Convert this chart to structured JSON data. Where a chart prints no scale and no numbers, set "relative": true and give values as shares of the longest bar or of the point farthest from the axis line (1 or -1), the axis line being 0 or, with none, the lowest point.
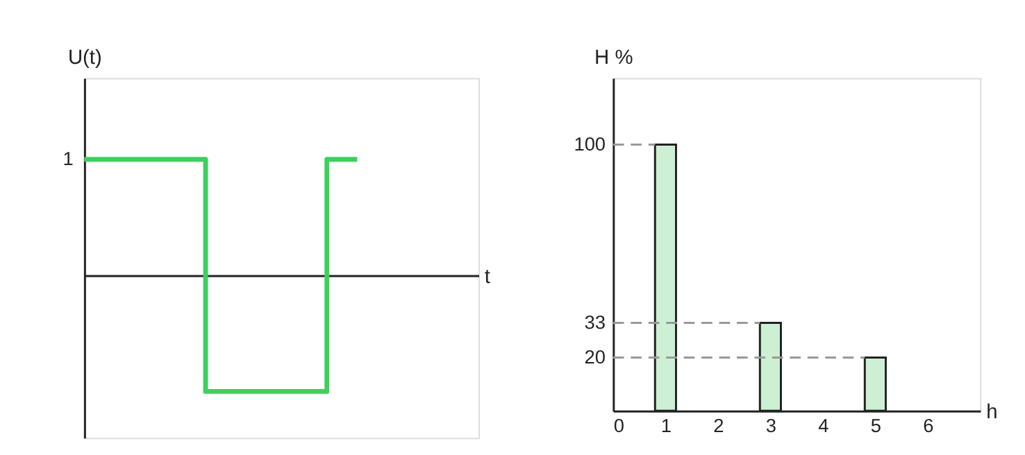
{
  "chart_data": [
    {
      "type": "step",
      "relative": true,
      "ylabel": "U(t)",
      "xlabel": "t",
      "tick_labels": false,
      "categories": [
        null,
        null,
        null,
        null,
        null,
        null,
        null,
        null,
        null,
        null
      ],
      "series": [
        {
          "color": "#3ecf5e",
          "values": [
            1,
            1,
            1,
            1,
            -1,
            -1,
            -1,
            -1,
            1,
            1
          ]
        }
      ],
      "annotations": [
        "1"
      ]
    },
    {
      "type": "bar",
      "xlabel": "h",
      "ylabel": "H %",
      "x": [
        1,
        3,
        5
      ],
      "values": [
        100,
        33,
        20
      ],
      "color": "#cdf0d4",
      "xlim": [
        0,
        7
      ],
      "xticks": [
        0,
        1,
        2,
        3,
        4,
        5,
        6
      ],
      "ylim": [
        0,
        125
      ],
      "yticks": [
        20,
        33,
        100
      ],
      "ref_lines": [
        {
          "axis": "y",
          "value": 100,
          "color": "#999999",
          "line_style": "dashed"
        },
        {
          "axis": "y",
          "value": 33,
          "color": "#999999",
          "line_style": "dashed"
        },
        {
          "axis": "y",
          "value": 20,
          "color": "#999999",
          "line_style": "dashed"
        }
      ]
    }
  ]
}
